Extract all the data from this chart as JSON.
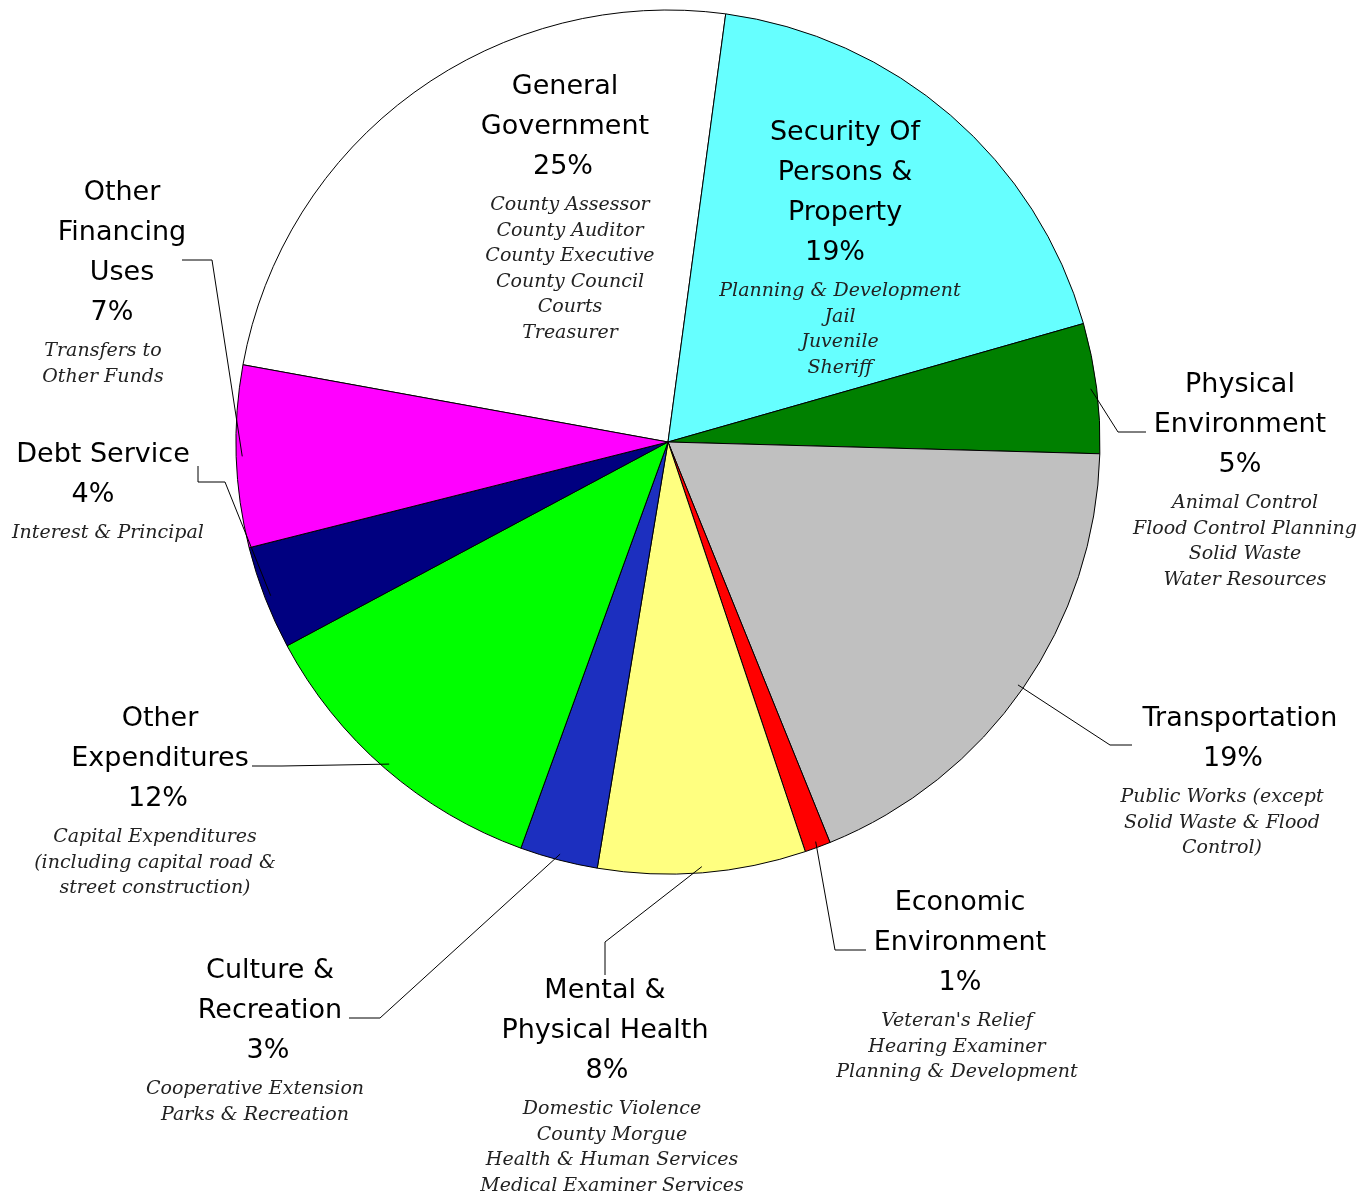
{
  "chart_data": {
    "type": "pie",
    "categories": [
      "General Government",
      "Security Of Persons & Property",
      "Physical Environment",
      "Transportation",
      "Economic Environment",
      "Mental & Physical Health",
      "Culture & Recreation",
      "Other Expenditures",
      "Debt Service",
      "Other Financing Uses"
    ],
    "values": [
      25,
      19,
      5,
      19,
      1,
      8,
      3,
      12,
      4,
      7
    ],
    "value_labels": [
      "25%",
      "19%",
      "5%",
      "19%",
      "1%",
      "8%",
      "3%",
      "12%",
      "4%",
      "7%"
    ],
    "colors": [
      "#ffffff",
      "#66ffff",
      "#008000",
      "#c0c0c0",
      "#ff0000",
      "#ffff80",
      "#1c2fbf",
      "#00ff00",
      "#000080",
      "#ff00ff"
    ],
    "annotations": [
      "County Assessor\nCounty Auditor\nCounty Executive\nCounty Council\nCourts\nTreasurer",
      "Planning & Development\nJail\nJuvenile\nSheriff",
      "Animal Control\nFlood Control Planning\nSolid Waste\nWater Resources",
      "Public Works (except\nSolid Waste & Flood\nControl)",
      "Veteran's Relief\nHearing Examiner\nPlanning & Development",
      "Domestic Violence\nCounty Morgue\nHealth & Human Services\nMedical Examiner Services",
      "Cooperative Extension\nParks & Recreation",
      "Capital Expenditures\n(including capital road &\nstreet construction)",
      "Interest & Principal",
      "Transfers to\nOther Funds"
    ]
  }
}
